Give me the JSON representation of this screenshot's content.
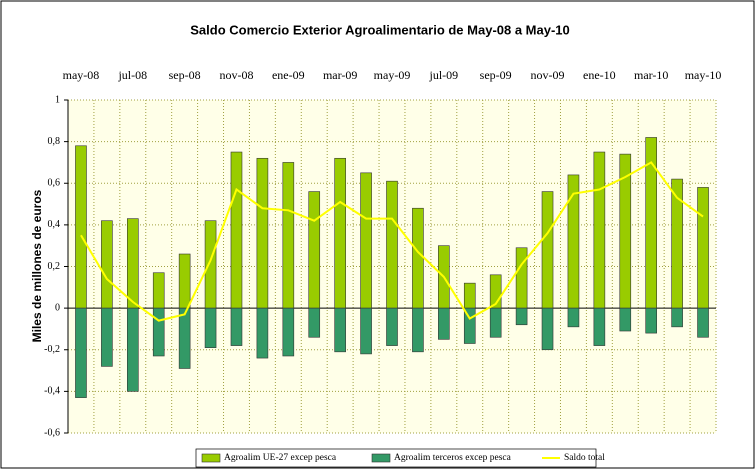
{
  "chart_data": {
    "type": "bar",
    "title": "Saldo Comercio Exterior Agroalimentario de May-08 a May-10",
    "y_label": "Miles de millones de euros",
    "categories": [
      "may-08",
      null,
      "jul-08",
      null,
      "sep-08",
      null,
      "nov-08",
      null,
      "ene-09",
      null,
      "mar-09",
      null,
      "may-09",
      null,
      "jul-09",
      null,
      "sep-09",
      null,
      "nov-09",
      null,
      "ene-10",
      null,
      "mar-10",
      null,
      "may-10"
    ],
    "series": [
      {
        "name": "Agroalim UE-27 excep pesca",
        "type": "bar",
        "color": "#99cc00",
        "values": [
          0.78,
          0.42,
          0.43,
          0.17,
          0.26,
          0.42,
          0.75,
          0.72,
          0.7,
          0.56,
          0.72,
          0.65,
          0.61,
          0.48,
          0.3,
          0.12,
          0.16,
          0.29,
          0.56,
          0.64,
          0.75,
          0.74,
          0.82,
          0.62,
          0.58
        ]
      },
      {
        "name": "Agroalim terceros excep pesca",
        "type": "bar",
        "color": "#339966",
        "values": [
          -0.43,
          -0.28,
          -0.4,
          -0.23,
          -0.29,
          -0.19,
          -0.18,
          -0.24,
          -0.23,
          -0.14,
          -0.21,
          -0.22,
          -0.18,
          -0.21,
          -0.15,
          -0.17,
          -0.14,
          -0.08,
          -0.2,
          -0.09,
          -0.18,
          -0.11,
          -0.12,
          -0.09,
          -0.14
        ]
      },
      {
        "name": "Saldo total",
        "type": "line",
        "color": "#ffff00",
        "values": [
          0.35,
          0.14,
          0.03,
          -0.06,
          -0.03,
          0.23,
          0.57,
          0.48,
          0.47,
          0.42,
          0.51,
          0.43,
          0.43,
          0.27,
          0.15,
          -0.05,
          0.02,
          0.21,
          0.36,
          0.55,
          0.57,
          0.63,
          0.7,
          0.53,
          0.44
        ]
      }
    ],
    "ylim": [
      -0.6,
      1
    ],
    "yticks": [
      {
        "value": -0.6,
        "label": "-0,6"
      },
      {
        "value": -0.4,
        "label": "-0,4"
      },
      {
        "value": -0.2,
        "label": "-0,2"
      },
      0,
      {
        "value": 0.2,
        "label": "0,2"
      },
      {
        "value": 0.4,
        "label": "0,4"
      },
      {
        "value": 0.6,
        "label": "0,6"
      },
      {
        "value": 0.8,
        "label": "0,8"
      },
      1
    ],
    "grid": true,
    "legend": "bottom"
  }
}
